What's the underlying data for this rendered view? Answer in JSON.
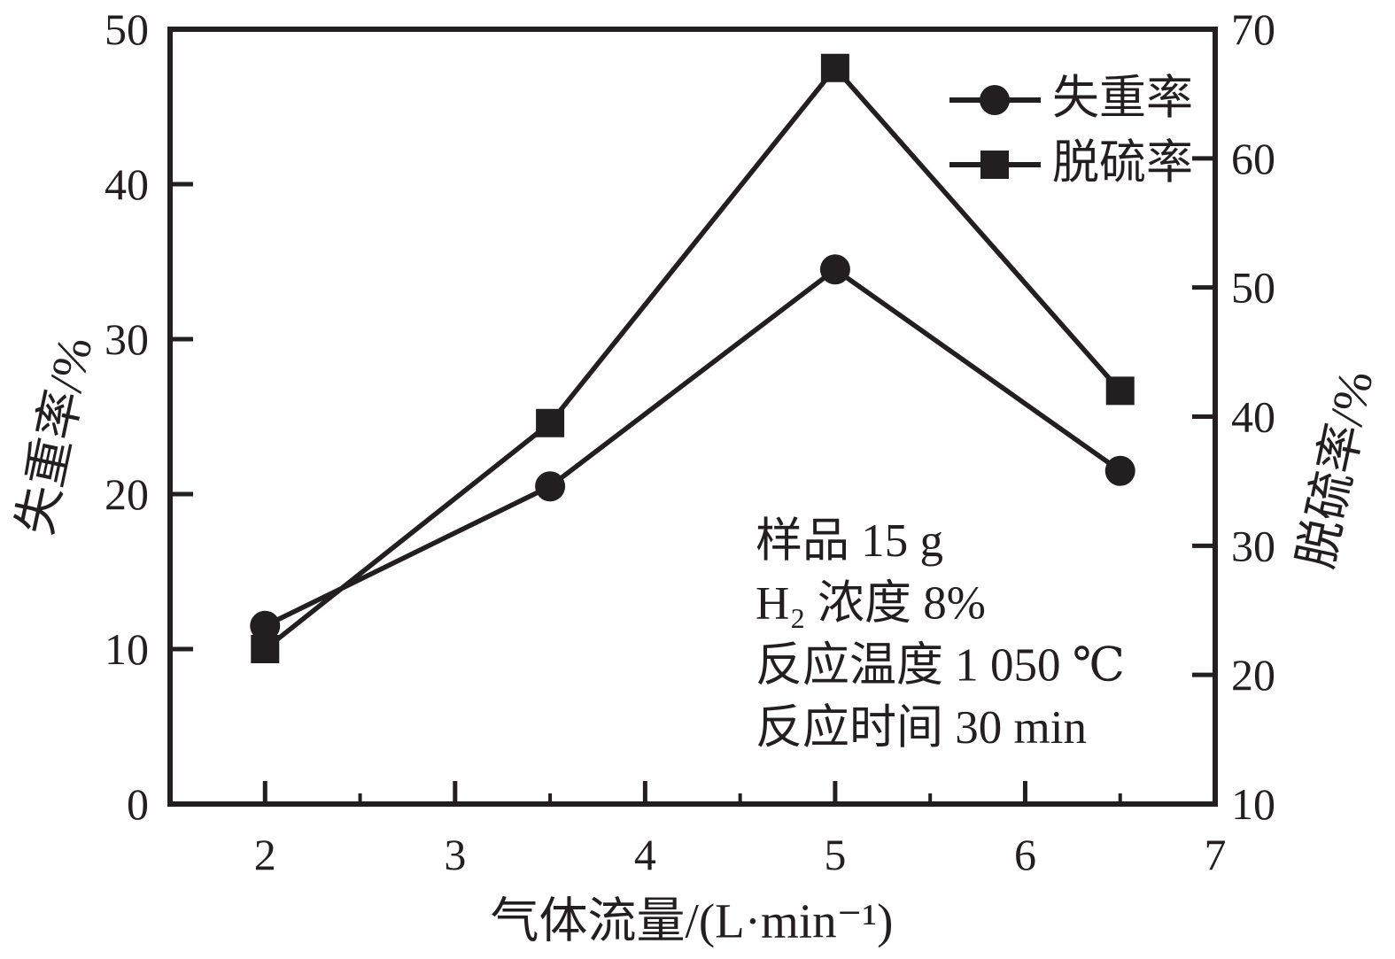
{
  "chart_data": {
    "type": "line",
    "x": [
      2,
      3.5,
      5,
      6.5
    ],
    "series": [
      {
        "name": "失重率",
        "axis": "left",
        "marker": "circle",
        "values": [
          11.5,
          20.5,
          34.5,
          21.5
        ]
      },
      {
        "name": "脱硫率",
        "axis": "right",
        "marker": "square",
        "values": [
          22,
          39.5,
          67,
          42
        ]
      }
    ],
    "xlabel": "气体流量/(L·min⁻¹)",
    "ylabel_left": "失重率/%",
    "ylabel_right": "脱硫率/%",
    "x_range": [
      1.5,
      7
    ],
    "x_major_ticks": [
      2,
      3,
      4,
      5,
      6,
      7
    ],
    "x_minor_ticks": [
      2.5,
      3.5,
      4.5,
      5.5,
      6.5
    ],
    "y_left_range": [
      0,
      50
    ],
    "y_left_ticks": [
      0,
      10,
      20,
      30,
      40,
      50
    ],
    "y_right_range": [
      10,
      70
    ],
    "y_right_ticks": [
      10,
      20,
      30,
      40,
      50,
      60,
      70
    ],
    "grid": false,
    "legend_position": "upper-right-inside",
    "legend": [
      "失重率",
      "脱硫率"
    ],
    "annotation_lines": [
      "样品 15 g",
      "H₂ 浓度 8%",
      "反应温度 1 050 ℃",
      "反应时间 30 min"
    ],
    "line_color": "#231f20",
    "background": "#ffffff"
  }
}
